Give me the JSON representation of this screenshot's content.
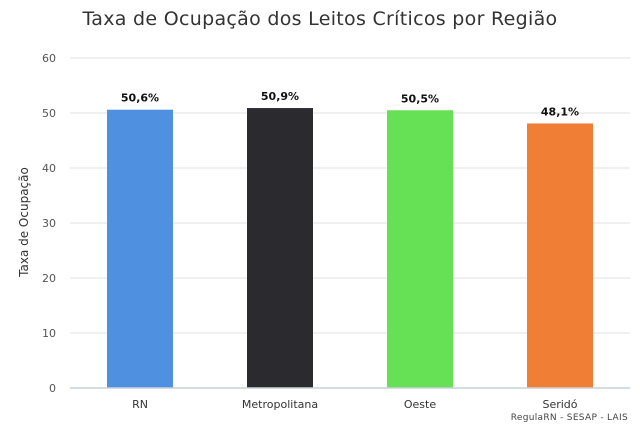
{
  "chart_data": {
    "type": "bar",
    "title": "Taxa de Ocupação dos Leitos Críticos por Região",
    "xlabel": "",
    "ylabel": "Taxa de Ocupação",
    "categories": [
      "RN",
      "Metropolitana",
      "Oeste",
      "Seridó"
    ],
    "values": [
      50.6,
      50.9,
      50.5,
      48.1
    ],
    "data_labels": [
      "50,6%",
      "50,9%",
      "50,5%",
      "48,1%"
    ],
    "colors": [
      "#5090e0",
      "#2b2b2f",
      "#66e055",
      "#f07f35"
    ],
    "ylim": [
      0,
      60
    ],
    "yticks": [
      0,
      10,
      20,
      30,
      40,
      50,
      60
    ],
    "grid": true,
    "legend": "none"
  },
  "credit": "RegulaRN - SESAP - LAIS"
}
